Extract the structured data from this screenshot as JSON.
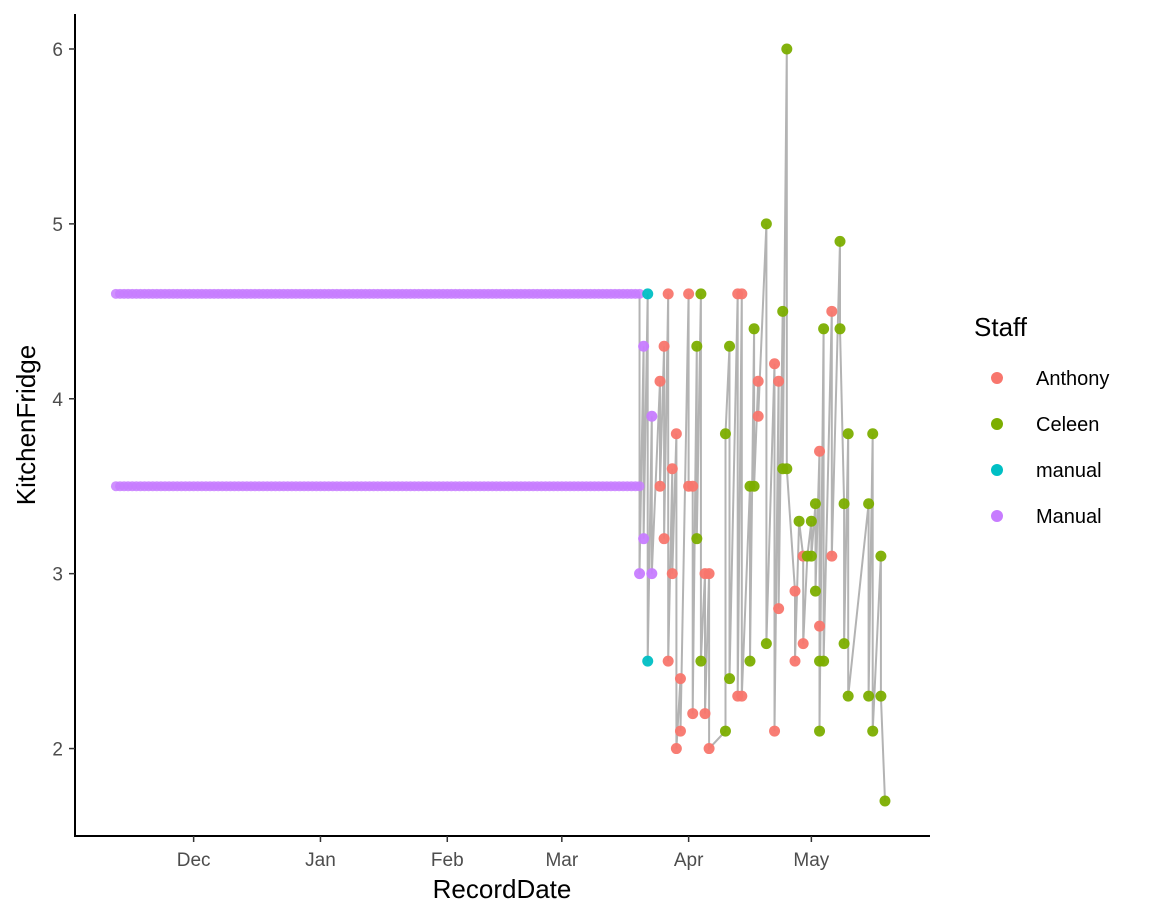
{
  "chart_data": {
    "type": "scatter",
    "xlabel": "RecordDate",
    "ylabel": "KitchenFridge",
    "x_tick_labels": [
      "Dec",
      "Jan",
      "Feb",
      "Mar",
      "Apr",
      "May"
    ],
    "x_ticks": [
      "2020-12-01",
      "2021-01-01",
      "2021-02-01",
      "2021-03-01",
      "2021-04-01",
      "2021-05-01"
    ],
    "xlim": [
      "2020-11-02",
      "2021-05-30"
    ],
    "y_tick_labels": [
      "2",
      "3",
      "4",
      "5",
      "6"
    ],
    "y_ticks": [
      2,
      3,
      4,
      5,
      6
    ],
    "ylim": [
      1.5,
      6.2
    ],
    "grid": false,
    "connecting_line_color": "#a6a6a6",
    "legend": {
      "title": "Staff",
      "placement": "right",
      "entries": [
        {
          "name": "Anthony",
          "color": "#F8766D"
        },
        {
          "name": "Celeen",
          "color": "#7CAE00"
        },
        {
          "name": "manual",
          "color": "#00BFC4"
        },
        {
          "name": "Manual",
          "color": "#C77CFF"
        }
      ]
    },
    "manual_baseline_series": [
      {
        "name": "Manual",
        "start": "2020-11-12",
        "end": "2021-03-20",
        "step_days": 1,
        "y": 4.6
      },
      {
        "name": "Manual",
        "start": "2020-11-12",
        "end": "2021-03-20",
        "step_days": 1,
        "y": 3.5
      }
    ],
    "points": [
      {
        "x": "2021-03-20",
        "y": 3.0,
        "staff": "Manual"
      },
      {
        "x": "2021-03-21",
        "y": 4.3,
        "staff": "Manual"
      },
      {
        "x": "2021-03-21",
        "y": 3.2,
        "staff": "Manual"
      },
      {
        "x": "2021-03-22",
        "y": 4.6,
        "staff": "manual"
      },
      {
        "x": "2021-03-22",
        "y": 2.5,
        "staff": "manual"
      },
      {
        "x": "2021-03-23",
        "y": 3.9,
        "staff": "Manual"
      },
      {
        "x": "2021-03-23",
        "y": 3.0,
        "staff": "Manual"
      },
      {
        "x": "2021-03-25",
        "y": 4.1,
        "staff": "Anthony"
      },
      {
        "x": "2021-03-25",
        "y": 3.5,
        "staff": "Anthony"
      },
      {
        "x": "2021-03-26",
        "y": 4.3,
        "staff": "Anthony"
      },
      {
        "x": "2021-03-26",
        "y": 3.2,
        "staff": "Anthony"
      },
      {
        "x": "2021-03-27",
        "y": 4.6,
        "staff": "Anthony"
      },
      {
        "x": "2021-03-27",
        "y": 2.5,
        "staff": "Anthony"
      },
      {
        "x": "2021-03-28",
        "y": 3.6,
        "staff": "Anthony"
      },
      {
        "x": "2021-03-28",
        "y": 3.0,
        "staff": "Anthony"
      },
      {
        "x": "2021-03-29",
        "y": 3.8,
        "staff": "Anthony"
      },
      {
        "x": "2021-03-29",
        "y": 2.0,
        "staff": "Anthony"
      },
      {
        "x": "2021-03-30",
        "y": 2.4,
        "staff": "Anthony"
      },
      {
        "x": "2021-03-30",
        "y": 2.1,
        "staff": "Anthony"
      },
      {
        "x": "2021-04-01",
        "y": 4.6,
        "staff": "Anthony"
      },
      {
        "x": "2021-04-01",
        "y": 3.5,
        "staff": "Anthony"
      },
      {
        "x": "2021-04-02",
        "y": 3.5,
        "staff": "Anthony"
      },
      {
        "x": "2021-04-02",
        "y": 2.2,
        "staff": "Anthony"
      },
      {
        "x": "2021-04-03",
        "y": 4.3,
        "staff": "Celeen"
      },
      {
        "x": "2021-04-03",
        "y": 3.2,
        "staff": "Celeen"
      },
      {
        "x": "2021-04-04",
        "y": 4.6,
        "staff": "Celeen"
      },
      {
        "x": "2021-04-04",
        "y": 2.5,
        "staff": "Celeen"
      },
      {
        "x": "2021-04-05",
        "y": 3.0,
        "staff": "Anthony"
      },
      {
        "x": "2021-04-05",
        "y": 2.2,
        "staff": "Anthony"
      },
      {
        "x": "2021-04-06",
        "y": 3.0,
        "staff": "Anthony"
      },
      {
        "x": "2021-04-06",
        "y": 2.0,
        "staff": "Anthony"
      },
      {
        "x": "2021-04-10",
        "y": 2.1,
        "staff": "Celeen"
      },
      {
        "x": "2021-04-10",
        "y": 3.8,
        "staff": "Celeen"
      },
      {
        "x": "2021-04-11",
        "y": 4.3,
        "staff": "Celeen"
      },
      {
        "x": "2021-04-11",
        "y": 2.4,
        "staff": "Celeen"
      },
      {
        "x": "2021-04-13",
        "y": 4.6,
        "staff": "Anthony"
      },
      {
        "x": "2021-04-13",
        "y": 2.3,
        "staff": "Anthony"
      },
      {
        "x": "2021-04-14",
        "y": 4.6,
        "staff": "Anthony"
      },
      {
        "x": "2021-04-14",
        "y": 2.3,
        "staff": "Anthony"
      },
      {
        "x": "2021-04-16",
        "y": 3.5,
        "staff": "Celeen"
      },
      {
        "x": "2021-04-16",
        "y": 2.5,
        "staff": "Celeen"
      },
      {
        "x": "2021-04-17",
        "y": 4.4,
        "staff": "Celeen"
      },
      {
        "x": "2021-04-17",
        "y": 3.5,
        "staff": "Celeen"
      },
      {
        "x": "2021-04-18",
        "y": 4.1,
        "staff": "Anthony"
      },
      {
        "x": "2021-04-18",
        "y": 3.9,
        "staff": "Anthony"
      },
      {
        "x": "2021-04-20",
        "y": 5.0,
        "staff": "Celeen"
      },
      {
        "x": "2021-04-20",
        "y": 2.6,
        "staff": "Celeen"
      },
      {
        "x": "2021-04-22",
        "y": 4.2,
        "staff": "Anthony"
      },
      {
        "x": "2021-04-22",
        "y": 2.1,
        "staff": "Anthony"
      },
      {
        "x": "2021-04-23",
        "y": 4.1,
        "staff": "Anthony"
      },
      {
        "x": "2021-04-23",
        "y": 2.8,
        "staff": "Anthony"
      },
      {
        "x": "2021-04-24",
        "y": 4.5,
        "staff": "Celeen"
      },
      {
        "x": "2021-04-24",
        "y": 3.6,
        "staff": "Celeen"
      },
      {
        "x": "2021-04-25",
        "y": 6.0,
        "staff": "Celeen"
      },
      {
        "x": "2021-04-25",
        "y": 3.6,
        "staff": "Celeen"
      },
      {
        "x": "2021-04-27",
        "y": 2.9,
        "staff": "Anthony"
      },
      {
        "x": "2021-04-27",
        "y": 2.5,
        "staff": "Anthony"
      },
      {
        "x": "2021-04-28",
        "y": 3.3,
        "staff": "Celeen"
      },
      {
        "x": "2021-04-29",
        "y": 3.1,
        "staff": "Anthony"
      },
      {
        "x": "2021-04-29",
        "y": 2.6,
        "staff": "Anthony"
      },
      {
        "x": "2021-04-30",
        "y": 3.1,
        "staff": "Celeen"
      },
      {
        "x": "2021-05-01",
        "y": 3.3,
        "staff": "Celeen"
      },
      {
        "x": "2021-05-01",
        "y": 3.1,
        "staff": "Celeen"
      },
      {
        "x": "2021-05-02",
        "y": 3.4,
        "staff": "Celeen"
      },
      {
        "x": "2021-05-02",
        "y": 2.9,
        "staff": "Celeen"
      },
      {
        "x": "2021-05-03",
        "y": 3.7,
        "staff": "Anthony"
      },
      {
        "x": "2021-05-03",
        "y": 2.7,
        "staff": "Anthony"
      },
      {
        "x": "2021-05-03",
        "y": 2.5,
        "staff": "Celeen"
      },
      {
        "x": "2021-05-03",
        "y": 2.1,
        "staff": "Celeen"
      },
      {
        "x": "2021-05-04",
        "y": 4.4,
        "staff": "Celeen"
      },
      {
        "x": "2021-05-04",
        "y": 2.5,
        "staff": "Celeen"
      },
      {
        "x": "2021-05-06",
        "y": 4.5,
        "staff": "Anthony"
      },
      {
        "x": "2021-05-06",
        "y": 3.1,
        "staff": "Anthony"
      },
      {
        "x": "2021-05-08",
        "y": 4.9,
        "staff": "Celeen"
      },
      {
        "x": "2021-05-08",
        "y": 4.4,
        "staff": "Celeen"
      },
      {
        "x": "2021-05-09",
        "y": 3.4,
        "staff": "Celeen"
      },
      {
        "x": "2021-05-09",
        "y": 2.6,
        "staff": "Celeen"
      },
      {
        "x": "2021-05-10",
        "y": 3.8,
        "staff": "Celeen"
      },
      {
        "x": "2021-05-10",
        "y": 2.3,
        "staff": "Celeen"
      },
      {
        "x": "2021-05-15",
        "y": 3.4,
        "staff": "Celeen"
      },
      {
        "x": "2021-05-15",
        "y": 2.3,
        "staff": "Celeen"
      },
      {
        "x": "2021-05-16",
        "y": 3.8,
        "staff": "Celeen"
      },
      {
        "x": "2021-05-16",
        "y": 2.1,
        "staff": "Celeen"
      },
      {
        "x": "2021-05-18",
        "y": 3.1,
        "staff": "Celeen"
      },
      {
        "x": "2021-05-18",
        "y": 2.3,
        "staff": "Celeen"
      },
      {
        "x": "2021-05-19",
        "y": 1.7,
        "staff": "Celeen"
      }
    ]
  }
}
